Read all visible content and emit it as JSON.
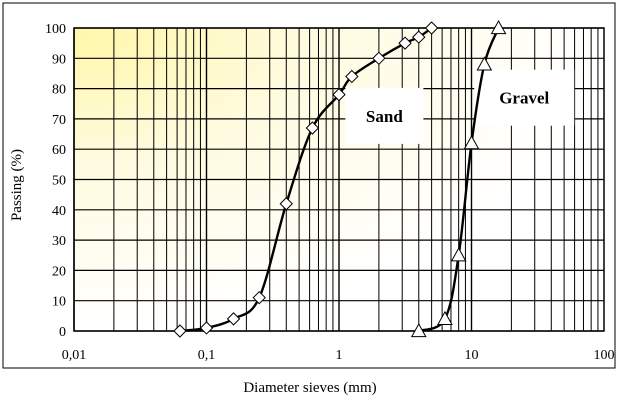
{
  "chart_data": {
    "type": "line",
    "xscale": "log",
    "xlim": [
      0.01,
      100
    ],
    "ylim": [
      0,
      100
    ],
    "grid": true,
    "xlabel": "Diameter sieves (mm)",
    "ylabel": "Passing (%)",
    "x_tick_labels": [
      "0,01",
      "0,1",
      "1",
      "10",
      "100"
    ],
    "y_tick_labels": [
      "0",
      "10",
      "20",
      "30",
      "40",
      "50",
      "60",
      "70",
      "80",
      "90",
      "100"
    ],
    "background": "light yellow gradient (top-left)",
    "series": [
      {
        "name": "Sand",
        "marker": "diamond",
        "color": "#000000",
        "x": [
          0.063,
          0.1,
          0.16,
          0.25,
          0.4,
          0.63,
          1,
          1.25,
          2,
          3.15,
          4,
          5
        ],
        "y": [
          0,
          1,
          4,
          11,
          42,
          67,
          78,
          84,
          90,
          95,
          97,
          100
        ]
      },
      {
        "name": "Gravel",
        "marker": "triangle",
        "color": "#000000",
        "x": [
          4,
          6.3,
          8,
          10,
          12.5,
          16
        ],
        "y": [
          0,
          4,
          25,
          62,
          88,
          100
        ]
      }
    ],
    "annotations": [
      {
        "text": "Sand",
        "x": 2.2,
        "y": 71
      },
      {
        "text": "Gravel",
        "x": 25,
        "y": 77
      }
    ]
  }
}
